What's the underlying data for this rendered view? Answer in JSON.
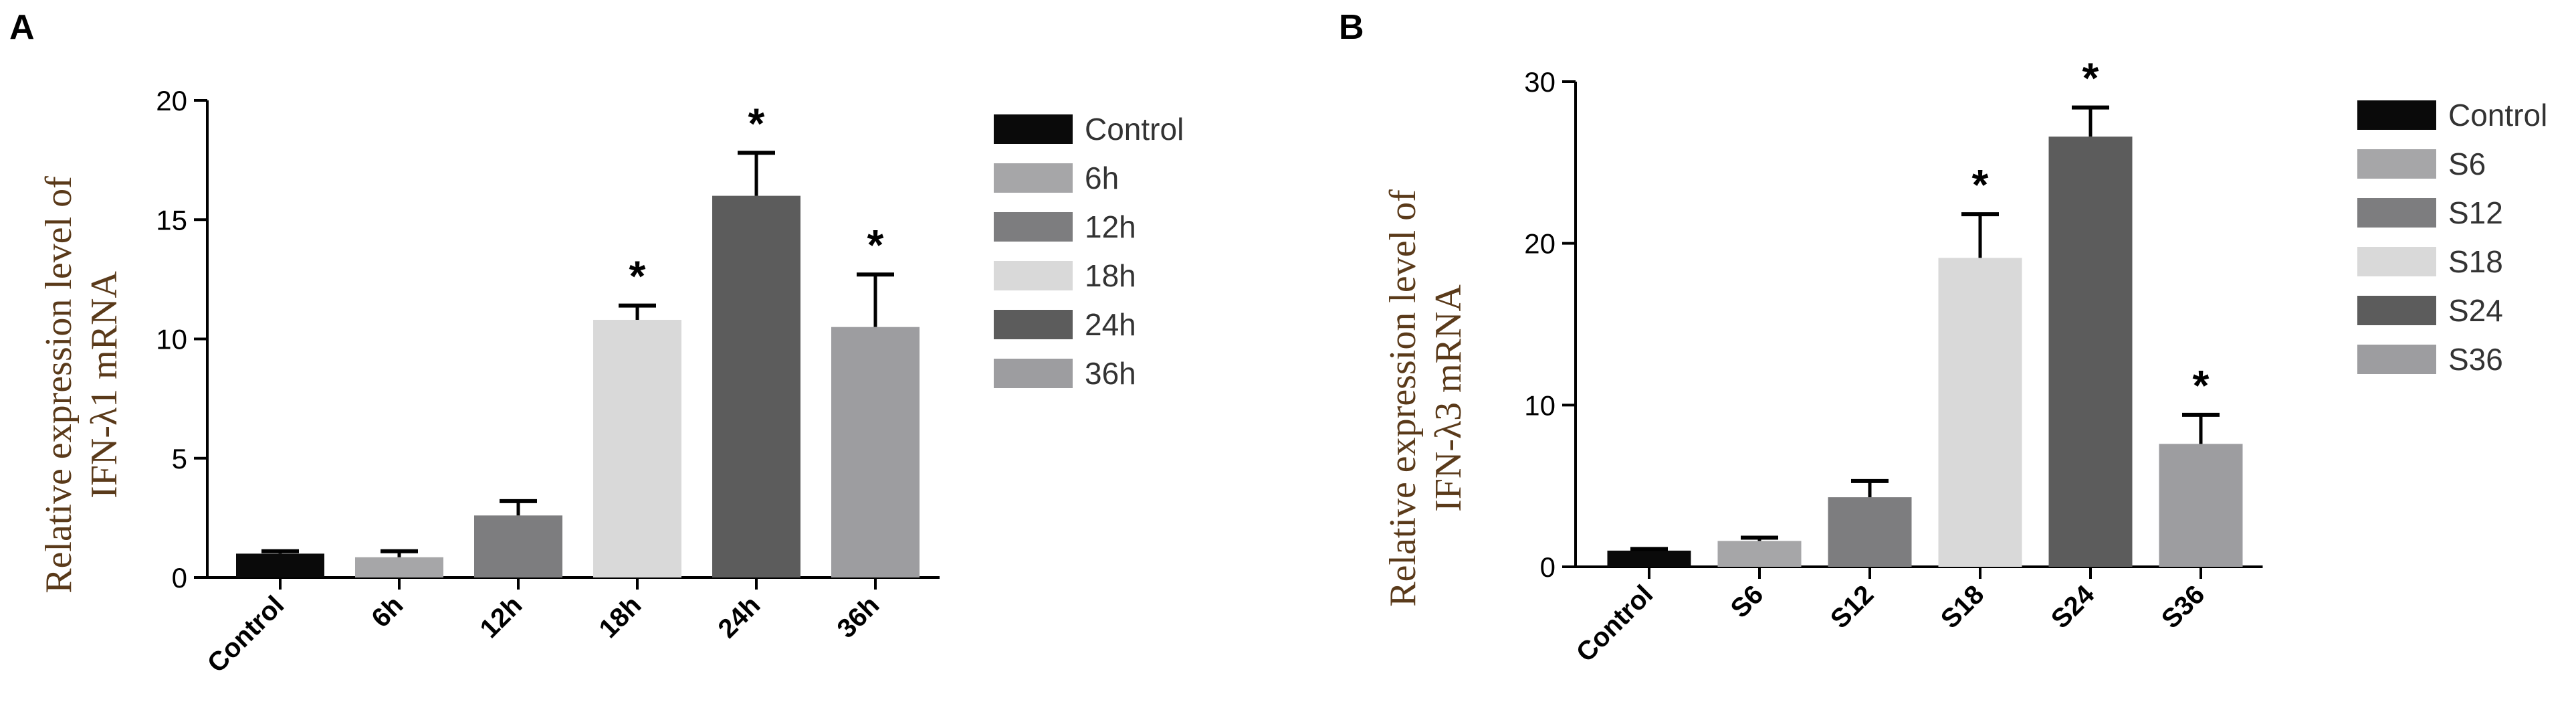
{
  "panels": [
    {
      "panel_label": "A",
      "ylabel_line1": "Relative expression level of",
      "ylabel_line2": "IFN-λ1 mRNA"
    },
    {
      "panel_label": "B",
      "ylabel_line1": "Relative expression level of",
      "ylabel_line2": "IFN-λ3 mRNA"
    }
  ],
  "chart_data": [
    {
      "type": "bar",
      "panel": "A",
      "categories": [
        "Control",
        "6h",
        "12h",
        "18h",
        "24h",
        "36h"
      ],
      "values": [
        1.0,
        0.85,
        2.6,
        10.8,
        16.0,
        10.5
      ],
      "errors": [
        0.1,
        0.25,
        0.6,
        0.6,
        1.8,
        2.2
      ],
      "significant": [
        false,
        false,
        false,
        true,
        true,
        true
      ],
      "significance_marker": "*",
      "colors": [
        "#0a0a0a",
        "#a6a6a8",
        "#7d7d7f",
        "#d9d9d9",
        "#5c5c5c",
        "#9d9da0"
      ],
      "ylim": [
        0,
        20
      ],
      "yticks": [
        "0",
        "5",
        "10",
        "15",
        "20"
      ],
      "ytick_values": [
        0,
        5,
        10,
        15,
        20
      ],
      "legend": [
        "Control",
        "6h",
        "12h",
        "18h",
        "24h",
        "36h"
      ],
      "legend_position": "right"
    },
    {
      "type": "bar",
      "panel": "B",
      "categories": [
        "Control",
        "S6",
        "S12",
        "S18",
        "S24",
        "S36"
      ],
      "values": [
        1.0,
        1.6,
        4.3,
        19.1,
        26.6,
        7.6
      ],
      "errors": [
        0.1,
        0.2,
        1.0,
        2.7,
        1.8,
        1.8
      ],
      "significant": [
        false,
        false,
        false,
        true,
        true,
        true
      ],
      "significance_marker": "*",
      "colors": [
        "#0a0a0a",
        "#a6a6a8",
        "#7d7d7f",
        "#d9d9d9",
        "#5c5c5c",
        "#9d9da0"
      ],
      "ylim": [
        0,
        30
      ],
      "yticks": [
        "0",
        "10",
        "20",
        "30"
      ],
      "ytick_values": [
        0,
        10,
        20,
        30
      ],
      "legend": [
        "Control",
        "S6",
        "S12",
        "S18",
        "S24",
        "S36"
      ],
      "legend_position": "right"
    }
  ]
}
